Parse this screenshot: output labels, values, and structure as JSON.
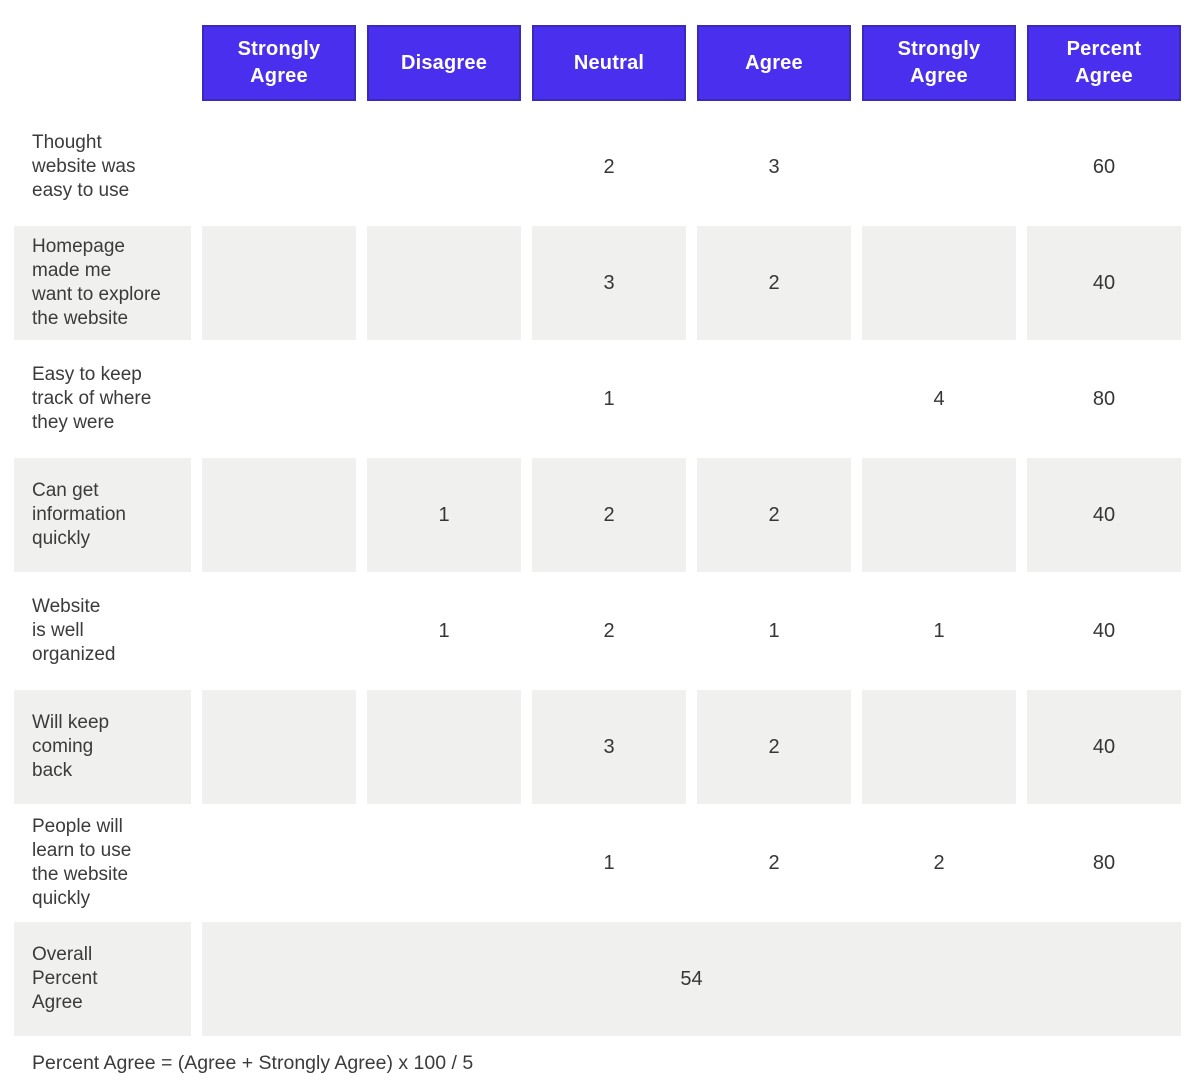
{
  "chart_data": {
    "type": "table",
    "columns": [
      "Strongly\nAgree",
      "Disagree",
      "Neutral",
      "Agree",
      "Strongly\nAgree",
      "Percent\nAgree"
    ],
    "rows": [
      {
        "label": "Thought\nwebsite was\neasy to use",
        "values": [
          "",
          "",
          "2",
          "3",
          "",
          "60"
        ]
      },
      {
        "label": "Homepage\nmade me\nwant to explore\nthe website",
        "values": [
          "",
          "",
          "3",
          "2",
          "",
          "40"
        ]
      },
      {
        "label": "Easy to keep\ntrack of where\nthey were",
        "values": [
          "",
          "",
          "1",
          "",
          "4",
          "80"
        ]
      },
      {
        "label": "Can get\ninformation\nquickly",
        "values": [
          "",
          "1",
          "2",
          "2",
          "",
          "40"
        ]
      },
      {
        "label": "Website\nis well\norganized",
        "values": [
          "",
          "1",
          "2",
          "1",
          "1",
          "40"
        ]
      },
      {
        "label": "Will keep\ncoming\nback",
        "values": [
          "",
          "",
          "3",
          "2",
          "",
          "40"
        ]
      },
      {
        "label": "People will\nlearn to use\nthe website\nquickly",
        "values": [
          "",
          "",
          "1",
          "2",
          "2",
          "80"
        ]
      }
    ],
    "summary": {
      "label": "Overall\nPercent\nAgree",
      "value": "54"
    },
    "footnote": "Percent Agree = (Agree + Strongly Agree) x 100 / 5",
    "layout_hints": "matrix table; alternating rows shaded; summary value spans all six data columns"
  },
  "colors": {
    "header_bg": "#4A2FEE",
    "header_border": "#3A2AB9",
    "shaded_cell": "#F0F0EE",
    "header_text": "#FFFFFF",
    "body_text": "#3B3B3B"
  }
}
